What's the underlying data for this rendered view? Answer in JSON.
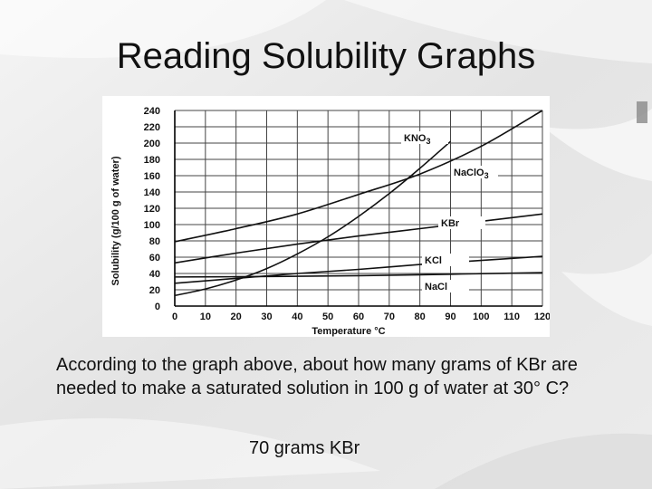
{
  "slide": {
    "title": "Reading Solubility Graphs",
    "question": "According to the graph above, about how many grams of KBr are needed to make a saturated solution in 100 g of water at 30° C?",
    "answer": "70 grams KBr"
  },
  "chart_data": {
    "type": "line",
    "xlabel": "Temperature °C",
    "ylabel": "Solubility (g/100 g of water)",
    "xlim": [
      0,
      120
    ],
    "ylim": [
      0,
      240
    ],
    "x_ticks": [
      0,
      10,
      20,
      30,
      40,
      50,
      60,
      70,
      80,
      90,
      100,
      110,
      120
    ],
    "y_ticks": [
      0,
      20,
      40,
      60,
      80,
      100,
      120,
      140,
      160,
      180,
      200,
      220,
      240
    ],
    "grid": true,
    "series": [
      {
        "name": "KNO3",
        "name_main": "KNO",
        "name_sub": "3",
        "x": [
          0,
          10,
          20,
          30,
          40,
          50,
          60,
          70,
          80,
          90
        ],
        "y": [
          13,
          21,
          32,
          46,
          64,
          85,
          110,
          138,
          169,
          202
        ]
      },
      {
        "name": "NaClO3",
        "name_main": "NaClO",
        "name_sub": "3",
        "x": [
          0,
          20,
          40,
          60,
          80,
          100,
          120
        ],
        "y": [
          79,
          95,
          113,
          137,
          162,
          196,
          240
        ]
      },
      {
        "name": "KBr",
        "x": [
          0,
          20,
          40,
          60,
          80,
          100,
          120
        ],
        "y": [
          53,
          65,
          76,
          86,
          95,
          104,
          113
        ]
      },
      {
        "name": "KCl",
        "x": [
          0,
          20,
          40,
          60,
          80,
          100,
          120
        ],
        "y": [
          28,
          34,
          40,
          45,
          51,
          56,
          61
        ]
      },
      {
        "name": "NaCl",
        "x": [
          0,
          20,
          40,
          60,
          80,
          100,
          120
        ],
        "y": [
          35.7,
          36,
          36.6,
          37.3,
          38.4,
          39.8,
          41
        ]
      }
    ],
    "colors": {
      "line": "#111111",
      "grid": "#444444",
      "background": "#ffffff"
    }
  }
}
